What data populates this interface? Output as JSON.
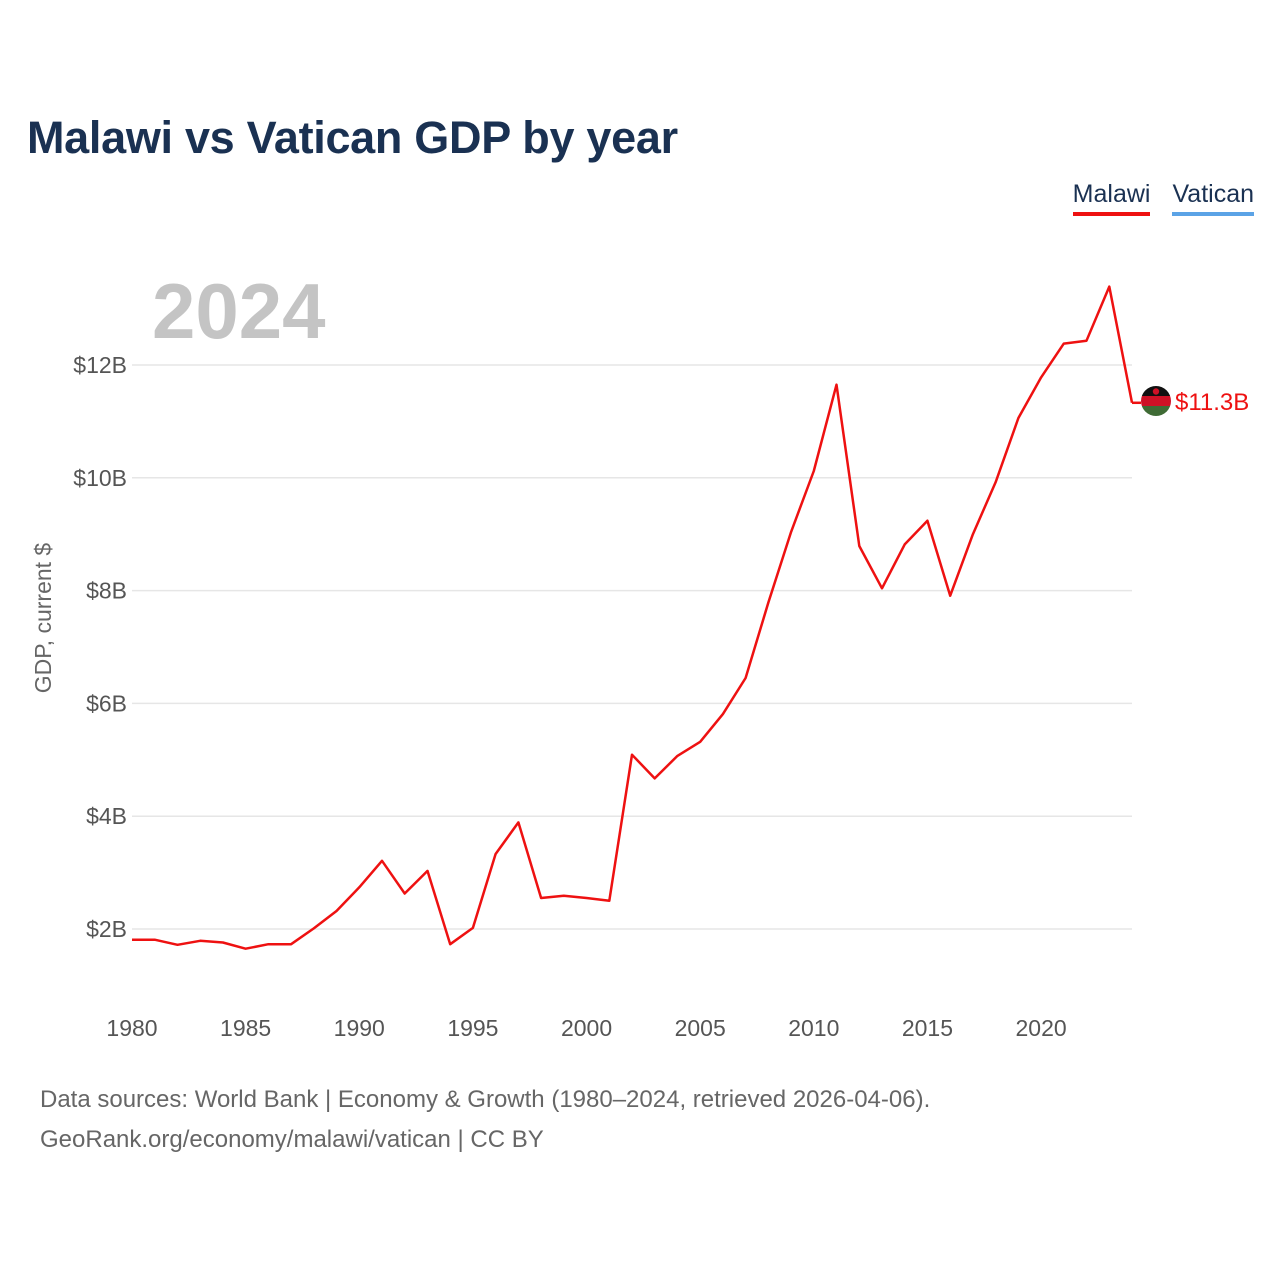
{
  "title": "Malawi vs Vatican GDP by year",
  "legend": [
    {
      "label": "Malawi",
      "color": "#ee1111"
    },
    {
      "label": "Vatican",
      "color": "#5ba3e6"
    }
  ],
  "year_watermark": "2024",
  "end_label": "$11.3B",
  "footer": {
    "line1": "Data sources: World Bank | Economy & Growth (1980–2024, retrieved 2026-04-06).",
    "line2": "GeoRank.org/economy/malawi/vatican | CC BY"
  },
  "chart_data": {
    "type": "line",
    "title": "Malawi vs Vatican GDP by year",
    "xlabel": "",
    "ylabel": "GDP, current $",
    "xlim": [
      1980,
      2024
    ],
    "ylim": [
      0.8,
      13.5
    ],
    "xticks": [
      1980,
      1985,
      1990,
      1995,
      2000,
      2005,
      2010,
      2015,
      2020
    ],
    "xtick_labels": [
      "1980",
      "1985",
      "1990",
      "1995",
      "2000",
      "2005",
      "2010",
      "2015",
      "2020"
    ],
    "yticks": [
      2,
      4,
      6,
      8,
      10,
      12
    ],
    "ytick_labels": [
      "$2B",
      "$4B",
      "$6B",
      "$8B",
      "$10B",
      "$12B"
    ],
    "grid": true,
    "legend_position": "top-right",
    "series": [
      {
        "name": "Malawi",
        "color": "#ee1111",
        "x": [
          1980,
          1981,
          1982,
          1983,
          1984,
          1985,
          1986,
          1987,
          1988,
          1989,
          1990,
          1991,
          1992,
          1993,
          1994,
          1995,
          1996,
          1997,
          1998,
          1999,
          2000,
          2001,
          2002,
          2003,
          2004,
          2005,
          2006,
          2007,
          2008,
          2009,
          2010,
          2011,
          2012,
          2013,
          2014,
          2015,
          2016,
          2017,
          2018,
          2019,
          2020,
          2021,
          2022,
          2023,
          2024
        ],
        "values": [
          1.81,
          1.81,
          1.72,
          1.79,
          1.76,
          1.65,
          1.73,
          1.73,
          2.01,
          2.32,
          2.74,
          3.21,
          2.63,
          3.03,
          1.73,
          2.02,
          3.33,
          3.89,
          2.55,
          2.59,
          2.55,
          2.5,
          5.09,
          4.67,
          5.07,
          5.32,
          5.81,
          6.45,
          7.79,
          9.04,
          10.12,
          11.65,
          8.79,
          8.04,
          8.82,
          9.24,
          7.91,
          9.0,
          9.92,
          11.06,
          11.78,
          12.38,
          12.43,
          13.39,
          11.33
        ]
      },
      {
        "name": "Vatican",
        "color": "#5ba3e6",
        "x": [],
        "values": []
      }
    ]
  }
}
